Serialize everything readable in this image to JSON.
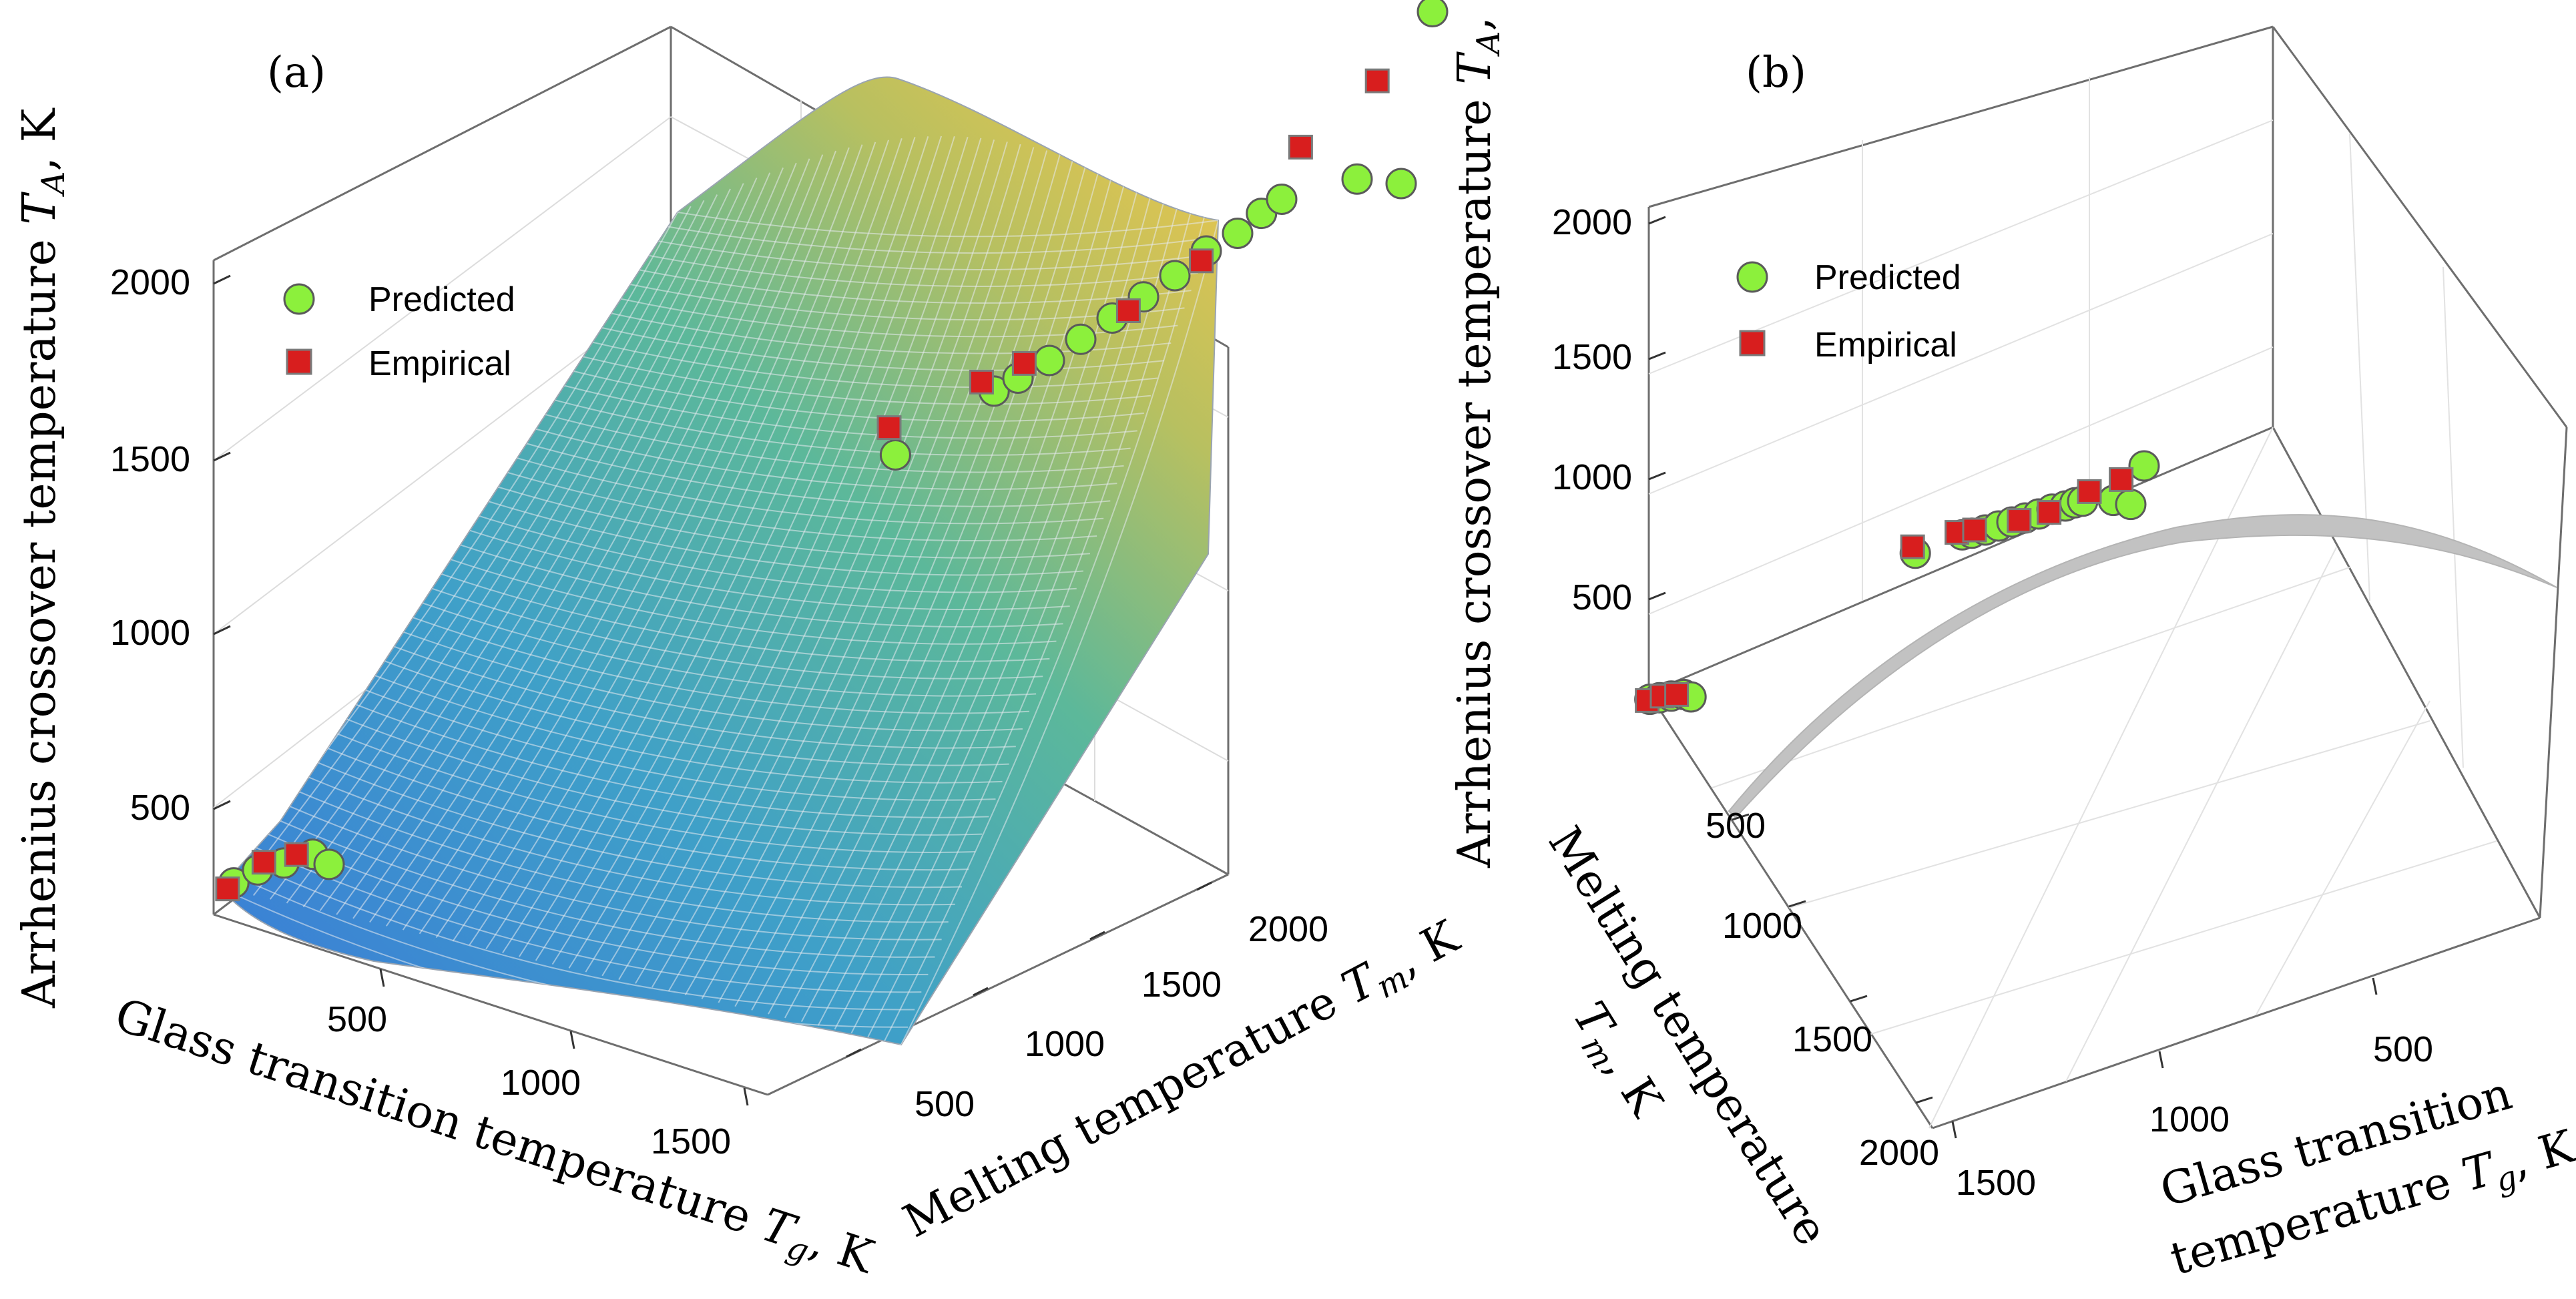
{
  "chart_data": [
    {
      "type": "scatter",
      "panel_label": "(a)",
      "surface": "colored fitted surface",
      "zlabel": "Arrhenius crossover temperature ",
      "zlabel_symbol": "T",
      "zlabel_sub": "A",
      "zlabel_unit": ", K",
      "xlabel": "Glass transition temperature ",
      "xlabel_symbol": "T",
      "xlabel_sub": "g",
      "xlabel_unit": ", K",
      "ylabel": "Melting temperature ",
      "ylabel_symbol": "T",
      "ylabel_sub": "m",
      "ylabel_unit": ", K",
      "z_ticks": [
        "500",
        "1000",
        "1500",
        "2000"
      ],
      "x_ticks": [
        "500",
        "1000",
        "1500"
      ],
      "y_ticks": [
        "500",
        "1000",
        "1500",
        "2000"
      ],
      "legend": {
        "position": "top-left",
        "entries": [
          "Predicted",
          "Empirical"
        ]
      },
      "series": [
        {
          "name": "Predicted",
          "color": "#8cf03c",
          "edge": "#5a5a5a",
          "points": [
            [
              120,
              250,
              270
            ],
            [
              150,
              300,
              290
            ],
            [
              200,
              330,
              310
            ],
            [
              250,
              370,
              330
            ],
            [
              280,
              390,
              300
            ],
            [
              940,
              1650,
              1010
            ],
            [
              1170,
              1700,
              1240
            ],
            [
              1200,
              1750,
              1260
            ],
            [
              1250,
              1800,
              1300
            ],
            [
              1300,
              1850,
              1350
            ],
            [
              1350,
              1900,
              1400
            ],
            [
              1400,
              1950,
              1450
            ],
            [
              1450,
              2000,
              1500
            ],
            [
              1500,
              2050,
              1560
            ],
            [
              1550,
              2100,
              1600
            ],
            [
              1580,
              2150,
              1640
            ],
            [
              1600,
              2200,
              1660
            ],
            [
              1700,
              2350,
              1670
            ],
            [
              1750,
              2450,
              1620
            ],
            [
              1800,
              2500,
              2100
            ]
          ]
        },
        {
          "name": "Empirical",
          "color": "#d81e1e",
          "edge": "#7a7a7a",
          "points": [
            [
              110,
              240,
              255
            ],
            [
              160,
              310,
              310
            ],
            [
              220,
              350,
              330
            ],
            [
              930,
              1640,
              1090
            ],
            [
              1150,
              1680,
              1270
            ],
            [
              1210,
              1760,
              1300
            ],
            [
              1380,
              1920,
              1420
            ],
            [
              1480,
              2060,
              1520
            ],
            [
              1610,
              2260,
              1780
            ],
            [
              1720,
              2400,
              1930
            ]
          ]
        }
      ]
    },
    {
      "type": "scatter",
      "panel_label": "(b)",
      "surface": "grey fitted surface (edge-on view)",
      "zlabel": "Arrhenius crossover temperature ",
      "zlabel_symbol": "T",
      "zlabel_sub": "A",
      "zlabel_unit": ", K",
      "xlabel_line1": "Glass transition",
      "xlabel_line2": "temperature ",
      "xlabel_symbol": "T",
      "xlabel_sub": "g",
      "xlabel_unit": ", K",
      "ylabel_line1": "Melting temperature",
      "ylabel_symbol": "T",
      "ylabel_sub": "m",
      "ylabel_unit": ", K",
      "z_ticks": [
        "500",
        "1000",
        "1500",
        "2000"
      ],
      "x_ticks": [
        "500",
        "1000",
        "1500"
      ],
      "y_ticks": [
        "500",
        "1000",
        "1500",
        "2000"
      ],
      "legend": {
        "position": "top-left",
        "entries": [
          "Predicted",
          "Empirical"
        ]
      }
    }
  ]
}
